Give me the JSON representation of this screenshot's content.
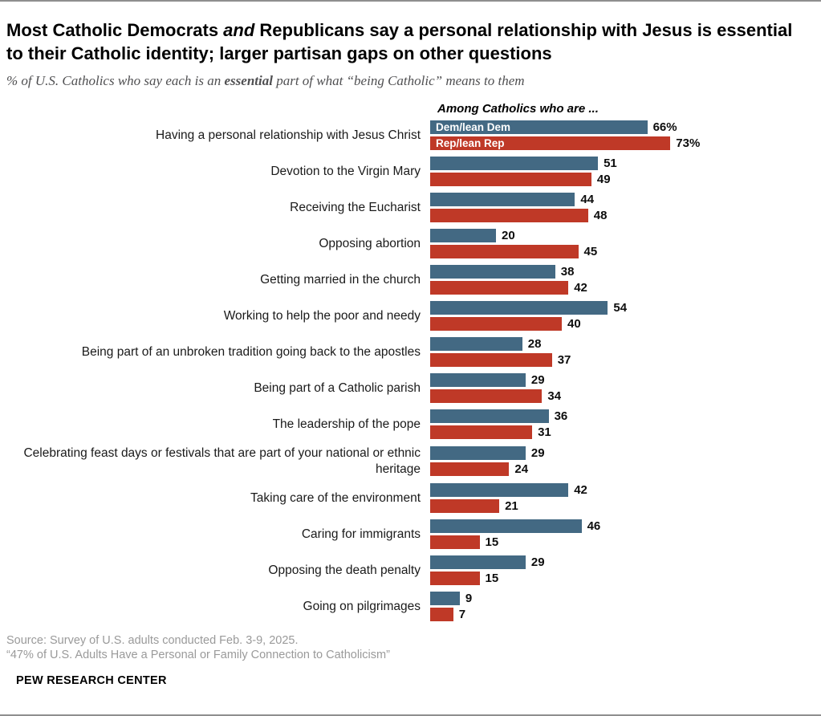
{
  "header": {
    "title_prefix": "Most Catholic Democrats ",
    "title_italic": "and",
    "title_suffix": " Republicans say a personal relationship with Jesus is essential to their Catholic identity; larger partisan gaps on other questions",
    "subtitle_prefix": "% of U.S. Catholics who say each is an ",
    "subtitle_bold": "essential",
    "subtitle_suffix": " part of what “being Catholic” means to them"
  },
  "chart_data": {
    "type": "bar",
    "orientation": "horizontal",
    "legend_title": "Among Catholics who are ...",
    "legend_position": "inside-first-bars",
    "grid": false,
    "xlim": [
      0,
      100
    ],
    "value_suffix_first_row": "%",
    "categories": [
      "Having a personal relationship with Jesus Christ",
      "Devotion to the Virgin Mary",
      "Receiving the Eucharist",
      "Opposing abortion",
      "Getting married in the church",
      "Working to help the poor and needy",
      "Being part of an unbroken tradition going back to the apostles",
      "Being part of a Catholic parish",
      "The leadership of the pope",
      "Celebrating feast days or festivals that are part of your national or ethnic heritage",
      "Taking care of the environment",
      "Caring for immigrants",
      "Opposing the death penalty",
      "Going on pilgrimages"
    ],
    "series": [
      {
        "name": "Dem/lean Dem",
        "color": "#436983",
        "values": [
          66,
          51,
          44,
          20,
          38,
          54,
          28,
          29,
          36,
          29,
          42,
          46,
          29,
          9
        ]
      },
      {
        "name": "Rep/lean Rep",
        "color": "#bf3927",
        "values": [
          73,
          49,
          48,
          45,
          42,
          40,
          37,
          34,
          31,
          24,
          21,
          15,
          15,
          7
        ]
      }
    ]
  },
  "footer": {
    "source_line1": "Source: Survey of U.S. adults conducted Feb. 3-9, 2025.",
    "source_line2": "“47% of U.S. Adults Have a Personal or Family Connection to Catholicism”",
    "brand": "PEW RESEARCH CENTER"
  }
}
